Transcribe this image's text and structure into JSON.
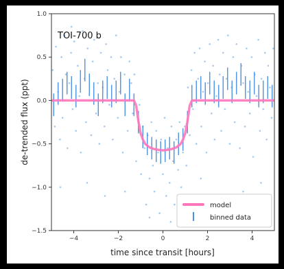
{
  "chart_data": {
    "type": "scatter",
    "title": "",
    "annotation": "TOI-700 b",
    "xlabel": "time since transit [hours]",
    "ylabel": "de-trended flux (ppt)",
    "xlim": [
      -5,
      5
    ],
    "ylim": [
      -1.5,
      1.0
    ],
    "xticks": [
      -4,
      -2,
      0,
      2,
      4
    ],
    "xtick_labels": [
      "−4",
      "−2",
      "0",
      "2",
      "4"
    ],
    "yticks": [
      1.0,
      0.5,
      0.0,
      -0.5,
      -1.0,
      -1.5
    ],
    "ytick_labels": [
      "1.0",
      "0.5",
      "0.0",
      "−0.5",
      "−1.0",
      "−1.5"
    ],
    "grid": false,
    "legend_position": "lower-right",
    "colors": {
      "raw_points": "#a8c9ee",
      "binned": "#4a90e2",
      "model": "#ff77bb",
      "background": "#ffffff",
      "canvas": "#000000"
    },
    "series": [
      {
        "name": "model",
        "kind": "line",
        "x": [
          -5.0,
          -1.3,
          -1.2,
          -1.1,
          -1.0,
          -0.9,
          -0.8,
          -0.6,
          -0.4,
          -0.2,
          0.0,
          0.2,
          0.4,
          0.6,
          0.8,
          0.9,
          1.0,
          1.1,
          1.2,
          1.3,
          5.0
        ],
        "y": [
          0.0,
          0.0,
          -0.06,
          -0.24,
          -0.38,
          -0.45,
          -0.5,
          -0.54,
          -0.56,
          -0.57,
          -0.575,
          -0.57,
          -0.56,
          -0.54,
          -0.5,
          -0.45,
          -0.38,
          -0.24,
          -0.06,
          0.0,
          0.0
        ]
      },
      {
        "name": "binned data",
        "kind": "errorbar",
        "x": [
          -4.9,
          -4.7,
          -4.5,
          -4.3,
          -4.1,
          -3.9,
          -3.7,
          -3.5,
          -3.3,
          -3.1,
          -2.9,
          -2.7,
          -2.5,
          -2.3,
          -2.1,
          -1.9,
          -1.7,
          -1.5,
          -1.3,
          -1.1,
          -0.9,
          -0.7,
          -0.5,
          -0.3,
          -0.1,
          0.1,
          0.3,
          0.5,
          0.7,
          0.9,
          1.1,
          1.3,
          1.5,
          1.7,
          1.9,
          2.1,
          2.3,
          2.5,
          2.7,
          2.9,
          3.1,
          3.3,
          3.5,
          3.7,
          3.9,
          4.1,
          4.3,
          4.5,
          4.7,
          4.9
        ],
        "y": [
          -0.05,
          0.08,
          0.12,
          0.2,
          0.15,
          0.05,
          0.22,
          0.35,
          0.18,
          0.08,
          -0.05,
          0.1,
          0.15,
          0.05,
          0.1,
          0.2,
          -0.05,
          0.12,
          -0.05,
          -0.25,
          -0.42,
          -0.5,
          -0.55,
          -0.58,
          -0.6,
          -0.58,
          -0.55,
          -0.6,
          -0.5,
          -0.45,
          -0.25,
          0.05,
          0.1,
          0.15,
          0.08,
          0.2,
          0.1,
          0.05,
          0.15,
          0.25,
          0.1,
          0.2,
          0.3,
          0.15,
          0.1,
          0.2,
          0.05,
          0.1,
          0.15,
          0.05
        ],
        "yerr": 0.13
      },
      {
        "name": "",
        "kind": "points",
        "x": [
          -4.95,
          -4.85,
          -4.8,
          -4.7,
          -4.62,
          -4.55,
          -4.5,
          -4.42,
          -4.35,
          -4.28,
          -4.2,
          -4.12,
          -4.05,
          -3.98,
          -3.9,
          -3.82,
          -3.75,
          -3.68,
          -3.6,
          -3.52,
          -3.45,
          -3.38,
          -3.3,
          -3.22,
          -3.15,
          -3.08,
          -3.0,
          -2.92,
          -2.85,
          -2.78,
          -2.7,
          -2.62,
          -2.55,
          -2.48,
          -2.4,
          -2.32,
          -2.25,
          -2.18,
          -2.1,
          -2.02,
          -1.95,
          -1.88,
          -1.8,
          -1.72,
          -1.65,
          -1.58,
          -1.5,
          -1.42,
          -1.35,
          -1.28,
          -1.2,
          -1.12,
          -1.05,
          -0.98,
          -0.9,
          -0.82,
          -0.75,
          -0.68,
          -0.6,
          -0.52,
          -0.45,
          -0.38,
          -0.3,
          -0.22,
          -0.15,
          -0.08,
          0.0,
          0.08,
          0.15,
          0.22,
          0.3,
          0.38,
          0.45,
          0.52,
          0.6,
          0.68,
          0.75,
          0.82,
          0.9,
          0.98,
          1.05,
          1.12,
          1.2,
          1.28,
          1.35,
          1.42,
          1.5,
          1.58,
          1.65,
          1.72,
          1.8,
          1.88,
          1.95,
          2.02,
          2.1,
          2.18,
          2.25,
          2.32,
          2.4,
          2.48,
          2.55,
          2.62,
          2.7,
          2.78,
          2.85,
          2.92,
          3.0,
          3.08,
          3.15,
          3.22,
          3.3,
          3.38,
          3.45,
          3.52,
          3.6,
          3.68,
          3.75,
          3.82,
          3.9,
          3.98,
          4.05,
          4.12,
          4.2,
          4.28,
          4.35,
          4.42,
          4.5,
          4.58,
          4.65,
          4.72,
          4.8,
          4.88,
          4.95,
          -4.6,
          -3.4,
          -2.6,
          -1.7,
          0.35,
          1.7,
          2.7,
          3.6,
          4.4,
          -4.1,
          -0.6,
          0.9
        ],
        "y": [
          0.35,
          -0.3,
          0.62,
          0.1,
          -0.45,
          0.5,
          -0.2,
          0.75,
          0.3,
          -0.55,
          0.2,
          0.55,
          -0.1,
          0.68,
          -0.35,
          0.4,
          0.05,
          -0.6,
          0.8,
          0.25,
          -0.25,
          0.6,
          0.0,
          -0.4,
          0.45,
          0.7,
          -0.15,
          0.2,
          -0.5,
          0.55,
          0.15,
          -0.3,
          0.65,
          0.35,
          -0.05,
          0.5,
          -0.45,
          0.25,
          0.75,
          -0.2,
          0.1,
          0.5,
          -0.6,
          0.3,
          0.0,
          -0.35,
          0.45,
          0.2,
          -0.15,
          0.3,
          -0.7,
          -0.2,
          -0.05,
          -0.85,
          -0.3,
          -0.55,
          -1.2,
          -0.4,
          -0.9,
          -0.25,
          -0.75,
          -1.05,
          -0.35,
          -0.6,
          -1.3,
          -0.45,
          -0.85,
          -0.2,
          -1.1,
          -0.55,
          -0.95,
          -0.3,
          -0.7,
          -1.2,
          -0.45,
          -0.8,
          -0.25,
          -1.0,
          -0.6,
          -0.3,
          -0.75,
          0.15,
          -0.4,
          0.35,
          -0.1,
          0.55,
          -0.5,
          0.25,
          0.6,
          -0.3,
          0.1,
          0.45,
          -0.6,
          0.2,
          0.65,
          -0.15,
          0.4,
          -0.45,
          0.05,
          0.7,
          0.3,
          -0.35,
          0.55,
          -0.1,
          0.25,
          0.75,
          -0.5,
          0.15,
          0.5,
          -0.25,
          0.65,
          0.0,
          -0.55,
          0.4,
          0.2,
          -0.3,
          0.6,
          0.1,
          -0.15,
          0.5,
          -0.65,
          0.3,
          0.05,
          0.7,
          -0.35,
          0.25,
          -0.1,
          0.55,
          -0.45,
          0.4,
          0.15,
          -0.2,
          0.6,
          -1.0,
          -0.95,
          -1.1,
          -1.05,
          -1.4,
          -0.9,
          -1.15,
          -1.05,
          -0.95,
          0.85,
          -1.35,
          -1.25
        ]
      }
    ]
  }
}
